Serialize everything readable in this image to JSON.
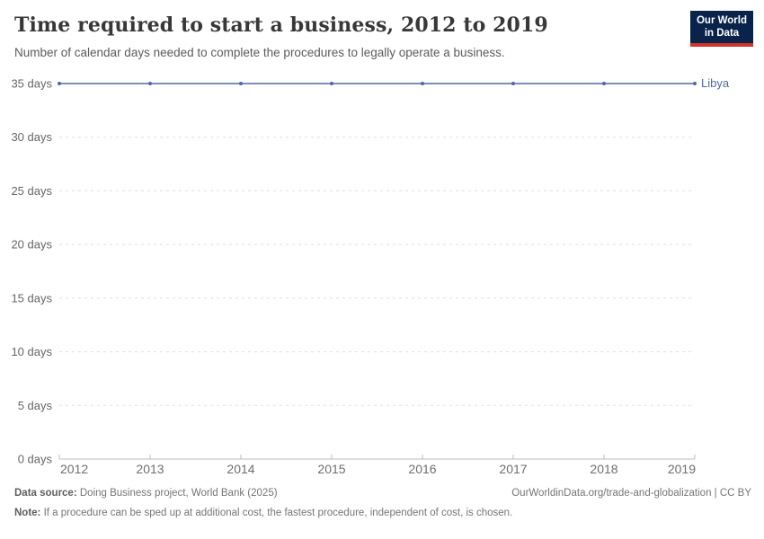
{
  "header": {
    "title": "Time required to start a business, 2012 to 2019",
    "subtitle": "Number of calendar days needed to complete the procedures to legally operate a business.",
    "logo": {
      "line1": "Our World",
      "line2": "in Data",
      "bg_color": "#0a234b",
      "bar_color": "#d0342c"
    }
  },
  "chart_data": {
    "type": "line",
    "title": "Time required to start a business, 2012 to 2019",
    "x": [
      2012,
      2013,
      2014,
      2015,
      2016,
      2017,
      2018,
      2019
    ],
    "series": [
      {
        "name": "Libya",
        "values": [
          35,
          35,
          35,
          35,
          35,
          35,
          35,
          35
        ],
        "color": "#4C6A9C"
      }
    ],
    "xlabel": "",
    "ylabel": "",
    "ylim": [
      0,
      35
    ],
    "yticks": [
      0,
      5,
      10,
      15,
      20,
      25,
      30,
      35
    ],
    "ytick_format": "{value} days",
    "grid": "horizontal-dashed",
    "legend_position": "end-of-line"
  },
  "footer": {
    "datasource_label": "Data source:",
    "datasource_text": " Doing Business project, World Bank (2025)",
    "link_text": "OurWorldinData.org/trade-and-globalization | CC BY",
    "note_label": "Note:",
    "note_text": " If a procedure can be sped up at additional cost, the fastest procedure, independent of cost, is chosen."
  }
}
